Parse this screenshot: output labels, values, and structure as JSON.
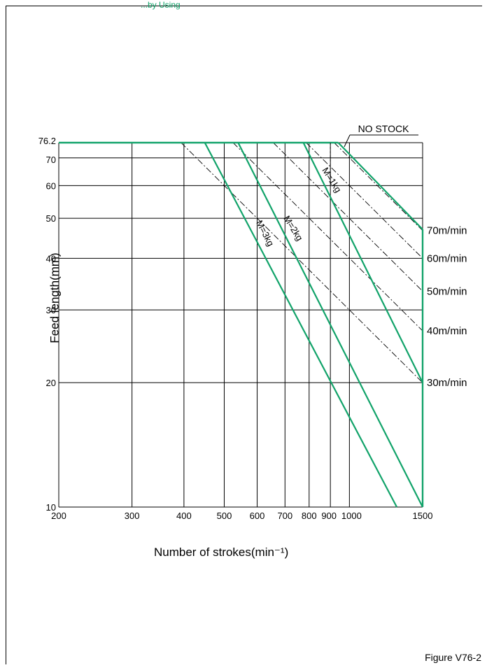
{
  "header_snippet": "...by Using",
  "caption": "Figure V76-2",
  "colors": {
    "green": "#12a36a",
    "black": "#000000"
  },
  "chart_data": {
    "type": "line",
    "xscale": "log",
    "yscale": "log",
    "xlim": [
      200,
      1500
    ],
    "ylim": [
      10,
      76.2
    ],
    "xlabel": "Number of strokes(min⁻¹)",
    "ylabel": "Feed length(mm)",
    "x_ticks": [
      200,
      300,
      400,
      500,
      600,
      700,
      800,
      900,
      1000,
      1500
    ],
    "x_tick_labels": [
      "200",
      "300",
      "400",
      "500",
      "600",
      "700",
      "800",
      "900",
      "1000",
      "1500"
    ],
    "y_ticks": [
      10,
      20,
      30,
      40,
      50,
      60,
      70,
      76.2
    ],
    "y_tick_labels": [
      "10",
      "20",
      "30",
      "40",
      "50",
      "60",
      "70",
      "76.2"
    ],
    "grid": true,
    "no_stock_label": "NO STOCK",
    "speed_lines": [
      {
        "name": "30m/min",
        "points": [
          [
            393.7,
            76.2
          ],
          [
            1500,
            20
          ]
        ]
      },
      {
        "name": "40m/min",
        "points": [
          [
            525,
            76.2
          ],
          [
            1500,
            26.7
          ]
        ]
      },
      {
        "name": "50m/min",
        "points": [
          [
            656,
            76.2
          ],
          [
            1500,
            33.3
          ]
        ]
      },
      {
        "name": "60m/min",
        "points": [
          [
            787,
            76.2
          ],
          [
            1500,
            40
          ]
        ]
      },
      {
        "name": "70m/min",
        "points": [
          [
            919,
            76.2
          ],
          [
            1500,
            46.7
          ]
        ]
      }
    ],
    "limit_curves": [
      {
        "name": "M=3kg",
        "points": [
          [
            449,
            76.2
          ],
          [
            1300,
            10
          ]
        ]
      },
      {
        "name": "M=2kg",
        "points": [
          [
            540,
            76.2
          ],
          [
            1500,
            10
          ]
        ]
      },
      {
        "name": "M=1kg",
        "points": [
          [
            775,
            76.2
          ],
          [
            1500,
            20
          ]
        ]
      },
      {
        "name": "NO STOCK",
        "points": [
          [
            940,
            76.2
          ],
          [
            1500,
            47
          ]
        ]
      }
    ]
  }
}
